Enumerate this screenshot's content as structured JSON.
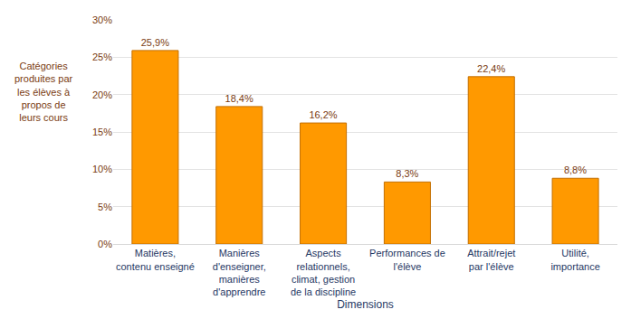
{
  "chart_data": {
    "type": "bar",
    "y_label": "Catégories produites par les élèves à propos de leurs cours",
    "x_label": "Dimensions",
    "categories": [
      "Matières, contenu enseigné",
      "Manières d'enseigner, manières d'apprendre",
      "Aspects relationnels, climat, gestion de la discipline",
      "Performances de l'élève",
      "Attrait/rejet par l'élève",
      "Utilité, importance"
    ],
    "values": [
      25.9,
      18.4,
      16.2,
      8.3,
      22.4,
      8.8
    ],
    "value_labels": [
      "25,9%",
      "18,4%",
      "16,2%",
      "8,3%",
      "22,4%",
      "8,8%"
    ],
    "color": "#ff9900",
    "ylim": [
      0,
      30
    ],
    "yticks": [
      {
        "value": 0,
        "label": "0%"
      },
      {
        "value": 5,
        "label": "5%"
      },
      {
        "value": 10,
        "label": "10%"
      },
      {
        "value": 15,
        "label": "15%"
      },
      {
        "value": 20,
        "label": "20%"
      },
      {
        "value": 25,
        "label": "25%"
      },
      {
        "value": 30,
        "label": "30%"
      }
    ],
    "grid": true,
    "data_labels": true
  }
}
